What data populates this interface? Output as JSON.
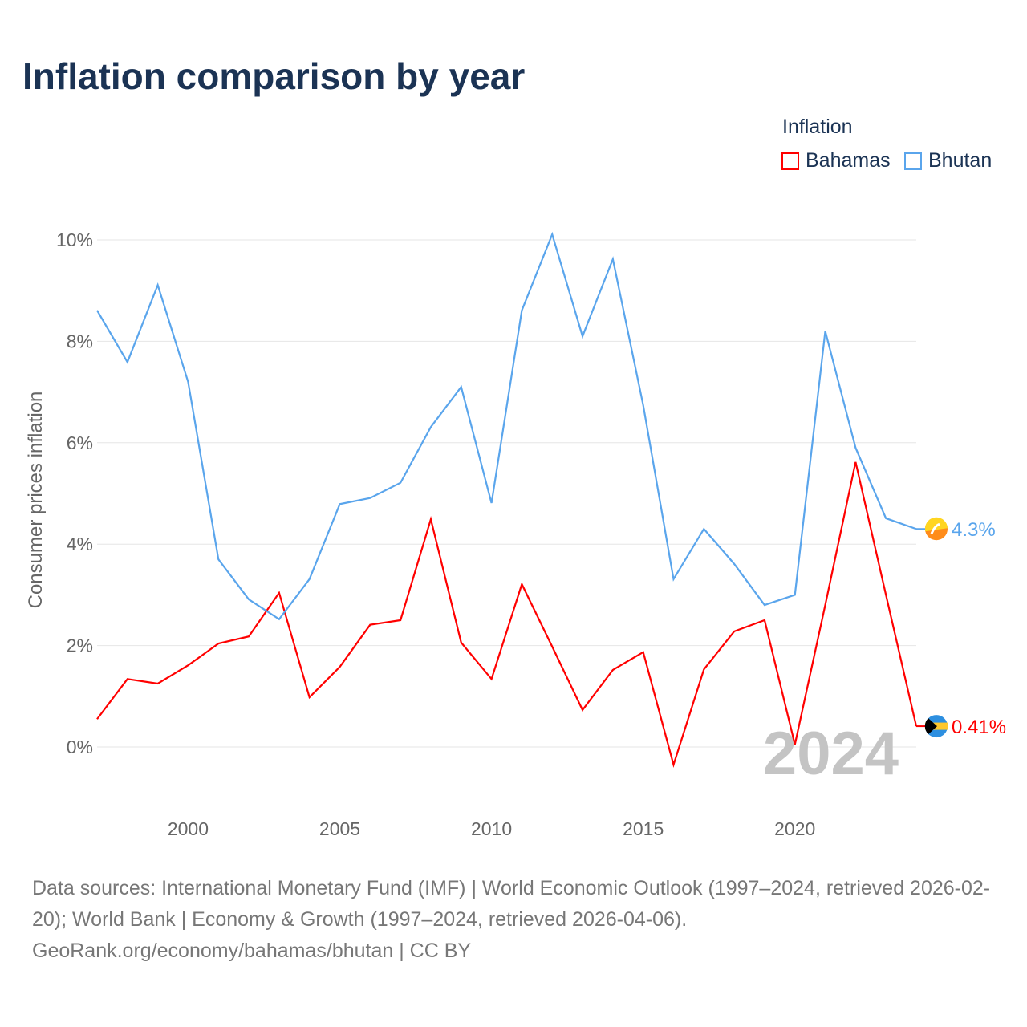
{
  "title": "Inflation comparison by year",
  "legend": {
    "title": "Inflation",
    "items": [
      {
        "name": "Bahamas",
        "color": "#ff0000"
      },
      {
        "name": "Bhutan",
        "color": "#5aa5ec"
      }
    ]
  },
  "chart_data": {
    "type": "line",
    "title": "Inflation comparison by year",
    "xlabel": "",
    "ylabel": "Consumer prices inflation",
    "x": [
      1997,
      1998,
      1999,
      2000,
      2001,
      2002,
      2003,
      2004,
      2005,
      2006,
      2007,
      2008,
      2009,
      2010,
      2011,
      2012,
      2013,
      2014,
      2015,
      2016,
      2017,
      2018,
      2019,
      2020,
      2021,
      2022,
      2023,
      2024
    ],
    "xticks": [
      "2000",
      "2005",
      "2010",
      "2015",
      "2020"
    ],
    "yticks": [
      "0%",
      "2%",
      "4%",
      "6%",
      "8%",
      "10%"
    ],
    "ylim": [
      -1.1,
      10.5
    ],
    "xlim": [
      1997,
      2024
    ],
    "grid": true,
    "legend_position": "top-right",
    "series": [
      {
        "name": "Bahamas",
        "color": "#ff0000",
        "end_label": "0.41%",
        "flag": "bahamas-flag",
        "values": [
          0.55,
          1.34,
          1.25,
          1.61,
          2.04,
          2.18,
          3.04,
          0.98,
          1.58,
          2.41,
          2.5,
          4.49,
          2.06,
          1.34,
          3.21,
          1.98,
          0.73,
          1.52,
          1.87,
          -0.35,
          1.53,
          2.28,
          2.5,
          0.05,
          2.8,
          5.62,
          3.0,
          0.41
        ]
      },
      {
        "name": "Bhutan",
        "color": "#5aa5ec",
        "end_label": "4.3%",
        "flag": "bhutan-flag",
        "values": [
          8.61,
          7.59,
          9.11,
          7.2,
          3.7,
          2.91,
          2.52,
          3.31,
          4.79,
          4.91,
          5.21,
          6.31,
          7.1,
          4.81,
          8.61,
          10.11,
          8.1,
          9.62,
          6.74,
          3.31,
          4.3,
          3.61,
          2.8,
          3.0,
          8.2,
          5.9,
          4.51,
          4.3
        ]
      }
    ],
    "annotation": "2024"
  },
  "source": {
    "line1": "Data sources: International Monetary Fund (IMF) | World Economic Outlook (1997–2024, retrieved 2026-02-20); World Bank | Economy & Growth (1997–2024, retrieved 2026-04-06).",
    "line2": "GeoRank.org/economy/bahamas/bhutan | CC BY"
  }
}
